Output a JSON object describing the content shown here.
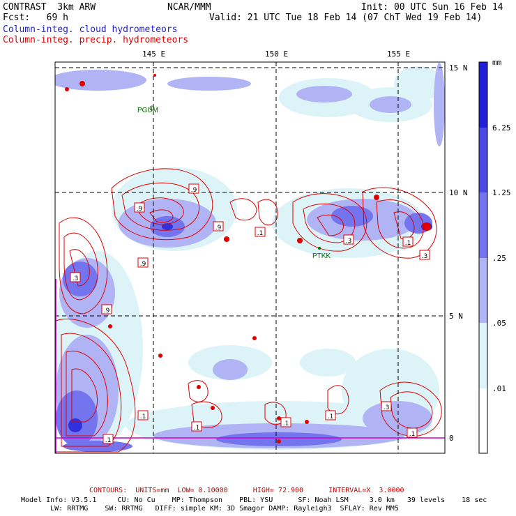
{
  "header": {
    "model": "CONTRAST  3km ARW",
    "org": "NCAR/MMM",
    "init": "Init: 00 UTC Sun 16 Feb 14",
    "fcst": "Fcst:   69 h",
    "valid": "Valid: 21 UTC Tue 18 Feb 14 (07 ChT Wed 19 Feb 14)",
    "field1": "Column-integ. cloud hydrometeors",
    "field2": "Column-integ. precip. hydrometeors"
  },
  "map": {
    "lon_labels": [
      "145 E",
      "150 E",
      "155 E"
    ],
    "lat_labels": [
      "15 N",
      "10 N",
      "5 N",
      "0"
    ],
    "stations": [
      "PGUM",
      "PTKK"
    ],
    "contour_labels": [
      ".9",
      ".9",
      ".9",
      ".9",
      ".9",
      ".1",
      ".3",
      ".1",
      ".3",
      ".1",
      ".1",
      ".1",
      ".3",
      ".1",
      ".3",
      ".1",
      ".1"
    ]
  },
  "colorbar": {
    "unit": "mm",
    "levels": [
      "6.25",
      "1.25",
      ".25",
      ".05",
      ".01"
    ],
    "colors": [
      "#2020d8",
      "#4848e4",
      "#7474ee",
      "#b0b4f4",
      "#dcf4f8",
      "#ffffff"
    ]
  },
  "footer": {
    "contours": "CONTOURS:  UNITS=mm  LOW= 0.10000      HIGH= 72.900      INTERVAL=X  3.0000",
    "model_info_1": "Model Info: V3.5.1     CU: No Cu    MP: Thompson    PBL: YSU      SF: Noah LSM     3.0 km   39 levels    18 sec",
    "model_info_2": "       LW: RRTMG    SW: RRTMG   DIFF: simple KM: 3D Smagor DAMP: Rayleigh3  SFLAY: Rev MM5"
  },
  "style": {
    "cloud_color": "#7a7aee",
    "precip_color": "#e00000",
    "grid_color": "#000000",
    "station_color": "#006600"
  }
}
